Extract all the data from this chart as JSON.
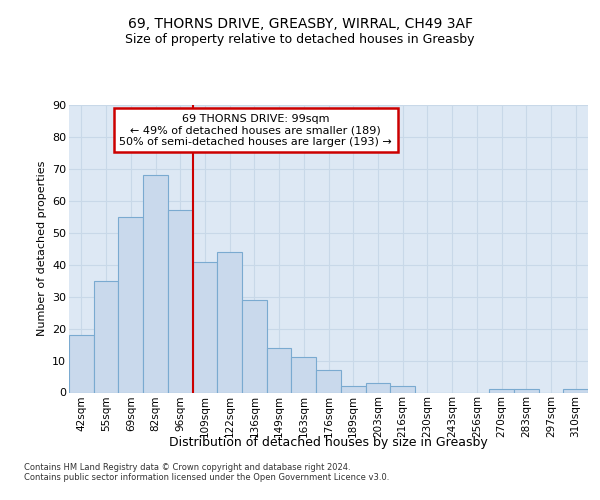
{
  "title1": "69, THORNS DRIVE, GREASBY, WIRRAL, CH49 3AF",
  "title2": "Size of property relative to detached houses in Greasby",
  "xlabel": "Distribution of detached houses by size in Greasby",
  "ylabel": "Number of detached properties",
  "footnote": "Contains HM Land Registry data © Crown copyright and database right 2024.\nContains public sector information licensed under the Open Government Licence v3.0.",
  "categories": [
    "42sqm",
    "55sqm",
    "69sqm",
    "82sqm",
    "96sqm",
    "109sqm",
    "122sqm",
    "136sqm",
    "149sqm",
    "163sqm",
    "176sqm",
    "189sqm",
    "203sqm",
    "216sqm",
    "230sqm",
    "243sqm",
    "256sqm",
    "270sqm",
    "283sqm",
    "297sqm",
    "310sqm"
  ],
  "values": [
    18,
    35,
    55,
    68,
    57,
    41,
    44,
    29,
    14,
    11,
    7,
    2,
    3,
    2,
    0,
    0,
    0,
    1,
    1,
    0,
    1
  ],
  "bar_color": "#c9d9ec",
  "bar_edge_color": "#7aaad0",
  "grid_color": "#c8d8e8",
  "background_color": "#dde8f4",
  "vline_x_index": 4,
  "vline_color": "#cc0000",
  "annotation_text": "69 THORNS DRIVE: 99sqm\n← 49% of detached houses are smaller (189)\n50% of semi-detached houses are larger (193) →",
  "annotation_box_facecolor": "#ffffff",
  "annotation_box_edgecolor": "#cc0000",
  "ylim": [
    0,
    90
  ],
  "yticks": [
    0,
    10,
    20,
    30,
    40,
    50,
    60,
    70,
    80,
    90
  ]
}
